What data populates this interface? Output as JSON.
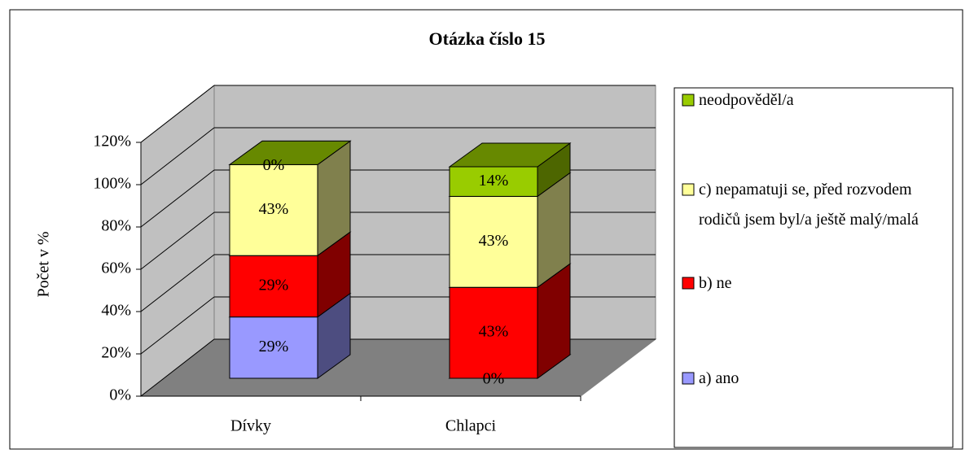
{
  "chart_data": {
    "type": "bar3d_stacked",
    "title": "Otázka číslo 15",
    "y_label": "Počet v %",
    "categories": [
      "Dívky",
      "Chlapci"
    ],
    "series": [
      {
        "name": "a) ano",
        "color": "#9999ff",
        "values": [
          29,
          0
        ],
        "value_labels": [
          "29%",
          "0%"
        ]
      },
      {
        "name": "b) ne",
        "color": "#ff0000",
        "values": [
          29,
          43
        ],
        "value_labels": [
          "29%",
          "43%"
        ]
      },
      {
        "name": "c) nepamatuji se, před rozvodem rodičů jsem byl/a ještě malý/malá",
        "color": "#ffff99",
        "values": [
          43,
          43
        ],
        "value_labels": [
          "43%",
          "43%"
        ]
      },
      {
        "name": "neodpověděl/a",
        "color": "#99cc00",
        "values": [
          0,
          14
        ],
        "value_labels": [
          "0%",
          "14%"
        ]
      }
    ],
    "ylim": [
      0,
      120
    ],
    "yticks": [
      {
        "value": 0,
        "label": "0%"
      },
      {
        "value": 20,
        "label": "20%"
      },
      {
        "value": 40,
        "label": "40%"
      },
      {
        "value": 60,
        "label": "60%"
      },
      {
        "value": 80,
        "label": "80%"
      },
      {
        "value": 100,
        "label": "100%"
      },
      {
        "value": 120,
        "label": "120%"
      }
    ],
    "grid": true,
    "legend": "right"
  }
}
